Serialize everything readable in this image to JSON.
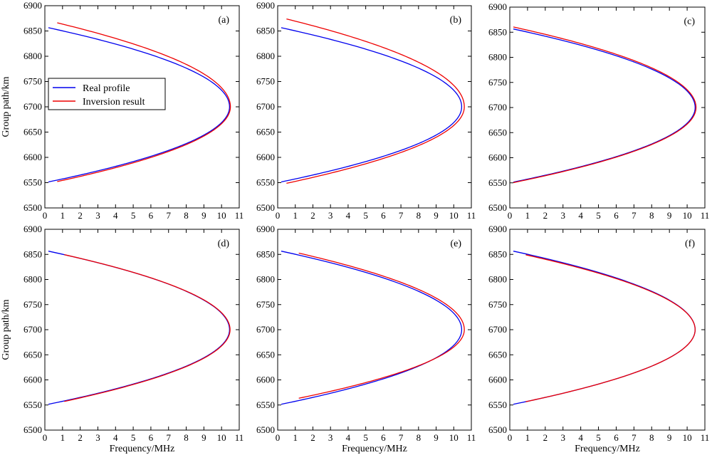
{
  "chart_data": {
    "type": "line",
    "shared": {
      "xlabel": "Frequency/MHz",
      "ylabel": "Group path/km",
      "xlim": [
        0,
        11
      ],
      "ylim": [
        6500,
        6900
      ],
      "xticks": [
        "0",
        "1",
        "2",
        "3",
        "4",
        "5",
        "6",
        "7",
        "8",
        "9",
        "10",
        "11"
      ],
      "yticks": [
        "6500",
        "6550",
        "6600",
        "6650",
        "6700",
        "6750",
        "6800",
        "6850",
        "6900"
      ],
      "legend": {
        "entries": [
          {
            "name": "Real profile",
            "color": "#0000ee"
          },
          {
            "name": "Inversion result",
            "color": "#ee0000"
          }
        ]
      },
      "series_colors": {
        "real": "#0000ee",
        "inversion": "#ee0000"
      }
    },
    "panels": [
      {
        "label": "(a)",
        "real": {
          "fc": 10.45,
          "fstart": 0.2,
          "top": 6858,
          "bottom": 6550
        },
        "inversion": {
          "fc": 10.5,
          "fstart": 0.7,
          "top": 6872,
          "bottom": 6547
        }
      },
      {
        "label": "(b)",
        "real": {
          "fc": 10.45,
          "fstart": 0.2,
          "top": 6858,
          "bottom": 6550
        },
        "inversion": {
          "fc": 10.6,
          "fstart": 0.5,
          "top": 6878,
          "bottom": 6545
        }
      },
      {
        "label": "(c)",
        "real": {
          "fc": 10.45,
          "fstart": 0.2,
          "top": 6858,
          "bottom": 6550
        },
        "inversion": {
          "fc": 10.5,
          "fstart": 0.2,
          "top": 6862,
          "bottom": 6549
        }
      },
      {
        "label": "(d)",
        "real": {
          "fc": 10.45,
          "fstart": 0.2,
          "top": 6858,
          "bottom": 6550
        },
        "inversion": {
          "fc": 10.48,
          "fstart": 1.1,
          "top": 6858,
          "bottom": 6549
        }
      },
      {
        "label": "(e)",
        "real": {
          "fc": 10.45,
          "fstart": 0.2,
          "top": 6858,
          "bottom": 6550
        },
        "inversion": {
          "fc": 10.6,
          "fstart": 1.2,
          "top": 6862,
          "bottom": 6555
        }
      },
      {
        "label": "(f)",
        "real": {
          "fc": 10.45,
          "fstart": 0.2,
          "top": 6858,
          "bottom": 6550
        },
        "inversion": {
          "fc": 10.45,
          "fstart": 0.9,
          "top": 6856,
          "bottom": 6550
        }
      }
    ]
  }
}
